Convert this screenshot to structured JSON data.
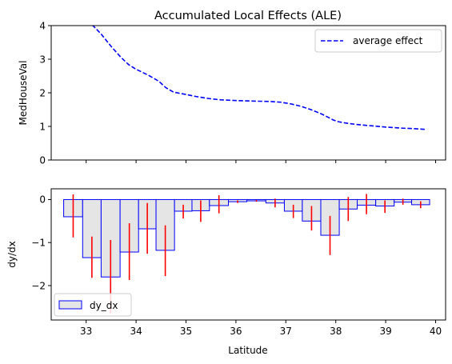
{
  "chart_data": [
    {
      "type": "line",
      "title": "Accumulated Local Effects (ALE)",
      "xlabel": "",
      "ylabel": "MedHouseVal",
      "xlim": [
        32.3,
        40.2
      ],
      "ylim": [
        0,
        4
      ],
      "xticks": [
        33,
        34,
        35,
        36,
        37,
        38,
        39,
        40
      ],
      "yticks": [
        0,
        1,
        2,
        3,
        4
      ],
      "ytick_labels": [
        "0",
        "1",
        "2",
        "3",
        "4"
      ],
      "grid": false,
      "legend_position": "top-right",
      "series": [
        {
          "name": "average effect",
          "color": "#0000ff",
          "style": "dashed",
          "x": [
            32.72,
            32.85,
            33.0,
            33.15,
            33.3,
            33.5,
            33.7,
            33.85,
            34.0,
            34.1,
            34.25,
            34.45,
            34.6,
            34.75,
            35.0,
            35.2,
            35.45,
            35.7,
            36.0,
            36.2,
            36.45,
            36.7,
            36.9,
            37.1,
            37.3,
            37.5,
            37.7,
            37.85,
            37.95,
            38.05,
            38.2,
            38.4,
            38.7,
            39.0,
            39.3,
            39.6,
            39.8
          ],
          "y": [
            4.5,
            4.35,
            4.15,
            3.98,
            3.75,
            3.38,
            3.05,
            2.84,
            2.7,
            2.63,
            2.52,
            2.35,
            2.15,
            2.02,
            1.95,
            1.89,
            1.83,
            1.79,
            1.77,
            1.76,
            1.75,
            1.74,
            1.72,
            1.67,
            1.6,
            1.5,
            1.38,
            1.27,
            1.19,
            1.14,
            1.1,
            1.06,
            1.02,
            0.98,
            0.95,
            0.93,
            0.91
          ]
        }
      ]
    },
    {
      "type": "bar",
      "title": "",
      "xlabel": "Latitude",
      "ylabel": "dy/dx",
      "xlim": [
        32.3,
        40.2
      ],
      "ylim": [
        -2.8,
        0.25
      ],
      "xticks": [
        33,
        34,
        35,
        36,
        37,
        38,
        39,
        40
      ],
      "xtick_labels": [
        "33",
        "34",
        "35",
        "36",
        "37",
        "38",
        "39",
        "40"
      ],
      "yticks": [
        -2,
        -1,
        0
      ],
      "ytick_labels": [
        "−2",
        "−1",
        "0"
      ],
      "grid": false,
      "legend_position": "bottom-left",
      "bar_face_color": "#e5e5e5",
      "bar_edge_color": "#0000ff",
      "error_color": "#ff0000",
      "series": [
        {
          "name": "dy_dx",
          "bins": [
            [
              32.55,
              32.93
            ],
            [
              32.93,
              33.3
            ],
            [
              33.3,
              33.68
            ],
            [
              33.68,
              34.05
            ],
            [
              34.05,
              34.4
            ],
            [
              34.4,
              34.77
            ],
            [
              34.77,
              35.12
            ],
            [
              35.12,
              35.47
            ],
            [
              35.47,
              35.85
            ],
            [
              35.85,
              36.22
            ],
            [
              36.22,
              36.6
            ],
            [
              36.6,
              36.97
            ],
            [
              36.97,
              37.33
            ],
            [
              37.33,
              37.7
            ],
            [
              37.7,
              38.07
            ],
            [
              38.07,
              38.43
            ],
            [
              38.43,
              38.8
            ],
            [
              38.8,
              39.17
            ],
            [
              39.17,
              39.52
            ],
            [
              39.52,
              39.88
            ]
          ],
          "values": [
            -0.4,
            -1.35,
            -1.8,
            -1.22,
            -0.68,
            -1.18,
            -0.27,
            -0.26,
            -0.14,
            -0.05,
            -0.03,
            -0.08,
            -0.27,
            -0.5,
            -0.83,
            -0.22,
            -0.13,
            -0.15,
            -0.06,
            -0.12
          ],
          "error_low": [
            -0.88,
            -1.82,
            -2.65,
            -1.87,
            -1.26,
            -1.78,
            -0.44,
            -0.52,
            -0.32,
            -0.08,
            -0.05,
            -0.18,
            -0.43,
            -0.72,
            -1.29,
            -0.5,
            -0.34,
            -0.31,
            -0.12,
            -0.2
          ],
          "error_high": [
            0.12,
            -0.86,
            -0.94,
            -0.55,
            -0.08,
            -0.6,
            -0.12,
            -0.02,
            0.1,
            -0.02,
            -0.01,
            0.02,
            -0.12,
            -0.15,
            -0.38,
            0.06,
            0.13,
            -0.02,
            0.02,
            -0.04
          ]
        }
      ]
    }
  ]
}
